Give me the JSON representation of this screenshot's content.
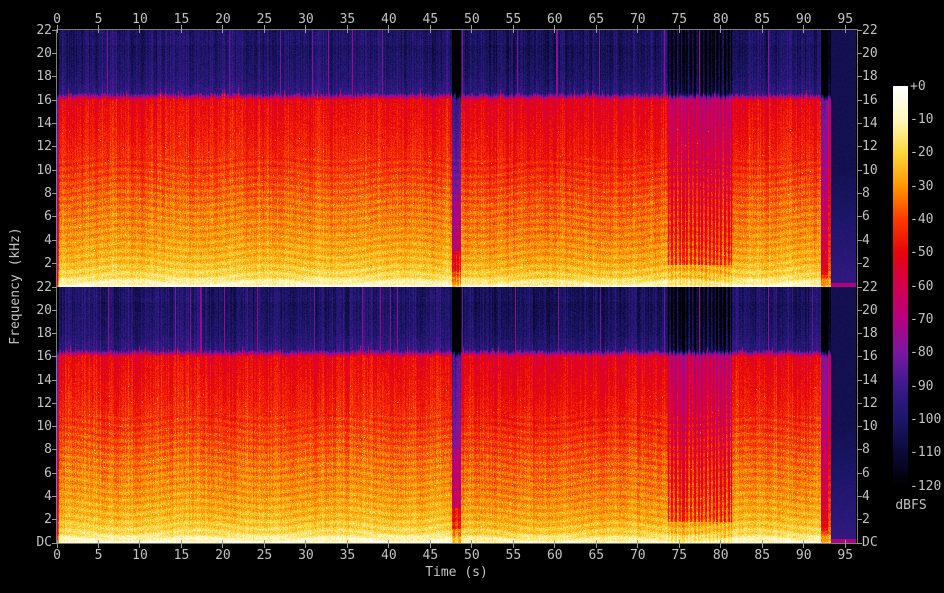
{
  "app": {
    "description": "Stereo audio spectrogram view, two channel panels with shared time axis and dBFS colorbar"
  },
  "chart_data": {
    "type": "heatmap",
    "subtype": "spectrogram",
    "title": "",
    "xlabel": "Time (s)",
    "ylabel": "Frequency (kHz)",
    "panels": [
      "channel-0-top",
      "channel-1-bottom"
    ],
    "time_axis": {
      "unit": "s",
      "ticks": [
        0,
        5,
        10,
        15,
        20,
        25,
        30,
        35,
        40,
        45,
        50,
        55,
        60,
        65,
        70,
        75,
        80,
        85,
        90,
        95
      ],
      "duration_s": 96.3
    },
    "freq_axis": {
      "unit": "kHz",
      "max_khz": 22,
      "ticks_khz": [
        22,
        20,
        18,
        16,
        14,
        12,
        10,
        8,
        6,
        4,
        2
      ],
      "bottom_label": "DC"
    },
    "colorbar": {
      "unit": "dBFS",
      "ticks": [
        "+0",
        "-10",
        "-20",
        "-30",
        "-40",
        "-50",
        "-60",
        "-70",
        "-80",
        "-90",
        "-100",
        "-110",
        "-120"
      ],
      "max_db": 0,
      "min_db": -120,
      "palette_stops": [
        [
          0,
          255,
          255,
          255
        ],
        [
          -10,
          255,
          247,
          190
        ],
        [
          -20,
          255,
          215,
          60
        ],
        [
          -30,
          255,
          150,
          0
        ],
        [
          -40,
          250,
          60,
          0
        ],
        [
          -50,
          230,
          5,
          10
        ],
        [
          -60,
          210,
          0,
          80
        ],
        [
          -70,
          180,
          0,
          130
        ],
        [
          -80,
          120,
          25,
          160
        ],
        [
          -90,
          60,
          25,
          140
        ],
        [
          -100,
          28,
          22,
          105
        ],
        [
          -110,
          12,
          10,
          56
        ],
        [
          -120,
          0,
          0,
          0
        ]
      ]
    },
    "features": {
      "cutoff_khz": 16.15,
      "freq_profile_db": [
        [
          0,
          -6
        ],
        [
          0.3,
          -10
        ],
        [
          0.8,
          -18
        ],
        [
          2,
          -24
        ],
        [
          4,
          -29
        ],
        [
          7,
          -34
        ],
        [
          10,
          -41
        ],
        [
          13,
          -46
        ],
        [
          16,
          -50
        ],
        [
          16.5,
          -93
        ],
        [
          18,
          -98
        ],
        [
          22,
          -103
        ]
      ],
      "segments": [
        {
          "t0": 0,
          "t1": 0.25,
          "type": "fade-in"
        },
        {
          "t0": 0.25,
          "t1": 47.55,
          "type": "music",
          "gain": 0
        },
        {
          "t0": 47.55,
          "t1": 48.65,
          "type": "quiet-gap"
        },
        {
          "t0": 48.65,
          "t1": 73.3,
          "type": "music",
          "gain": -3
        },
        {
          "t0": 73.3,
          "t1": 81.7,
          "type": "striped",
          "stripe_hz": 2.2
        },
        {
          "t0": 81.7,
          "t1": 92.05,
          "type": "music",
          "gain": -1
        },
        {
          "t0": 92.05,
          "t1": 92.9,
          "type": "dim-column"
        },
        {
          "t0": 92.9,
          "t1": 93.25,
          "type": "bright-line"
        },
        {
          "t0": 93.25,
          "t1": 96.3,
          "type": "silence"
        }
      ],
      "transient_spikes_s": {
        "channel0": [
          6.0,
          20.7,
          26.9,
          30.7,
          32.7,
          35.6,
          39.2,
          48.8,
          55.4,
          60.2,
          65.3,
          73.2,
          77.4,
          85.7
        ],
        "channel1": [
          6.1,
          14.2,
          16.0,
          17.3,
          20.1,
          24.1,
          31.0,
          36.8,
          38.9,
          40.1,
          41.0,
          48.8,
          55.2,
          60.4,
          65.5,
          73.2,
          77.4,
          85.7,
          91.0
        ]
      }
    },
    "layout": {
      "background": "#000000",
      "axis_color": "#7d7d7d",
      "tick_color": "#9a9a9a",
      "label_color": "#c2c2c2",
      "grid": false,
      "colorbar_position": "right"
    }
  }
}
